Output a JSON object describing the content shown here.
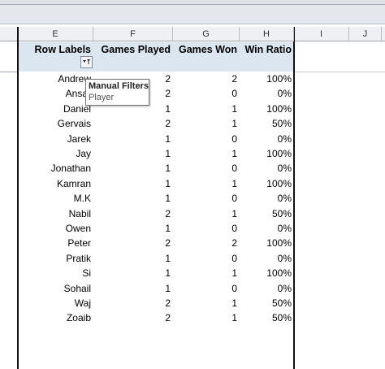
{
  "column_headers": [
    "E",
    "F",
    "G",
    "H",
    "I",
    "J"
  ],
  "table": {
    "headers": [
      "Row Labels",
      "Games Played",
      "Games Won",
      "Win Ratio"
    ],
    "rows": [
      [
        "Andrew",
        2,
        2,
        "100%"
      ],
      [
        "Ansar",
        2,
        0,
        "0%"
      ],
      [
        "Daniel",
        1,
        1,
        "100%"
      ],
      [
        "Gervais",
        2,
        1,
        "50%"
      ],
      [
        "Jarek",
        1,
        0,
        "0%"
      ],
      [
        "Jay",
        1,
        1,
        "100%"
      ],
      [
        "Jonathan",
        1,
        0,
        "0%"
      ],
      [
        "Kamran",
        1,
        1,
        "100%"
      ],
      [
        "M.K",
        1,
        0,
        "0%"
      ],
      [
        "Nabil",
        2,
        1,
        "50%"
      ],
      [
        "Owen",
        1,
        0,
        "0%"
      ],
      [
        "Peter",
        2,
        2,
        "100%"
      ],
      [
        "Pratik",
        1,
        0,
        "0%"
      ],
      [
        "Si",
        1,
        1,
        "100%"
      ],
      [
        "Sohail",
        1,
        0,
        "0%"
      ],
      [
        "Waj",
        2,
        1,
        "50%"
      ],
      [
        "Zoaib",
        2,
        1,
        "50%"
      ]
    ]
  },
  "tooltip": {
    "title": "Manual Filters",
    "text": "Player"
  }
}
